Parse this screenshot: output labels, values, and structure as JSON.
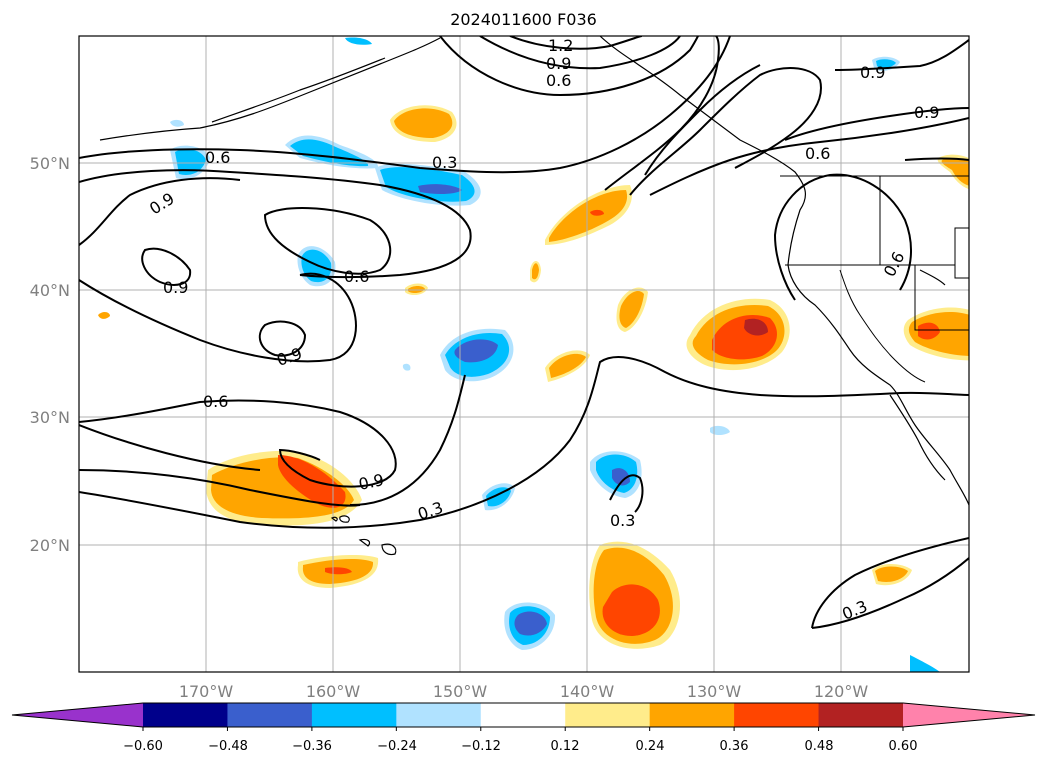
{
  "title": "2024011600 F036",
  "map": {
    "lat_labels": [
      "50°N",
      "40°N",
      "30°N",
      "20°N"
    ],
    "lon_labels": [
      "170°W",
      "160°W",
      "150°W",
      "140°W",
      "130°W",
      "120°W"
    ],
    "lat_range": [
      10,
      60
    ],
    "lon_range": [
      -180,
      -110
    ],
    "contour_labels": [
      "1.2",
      "0.9",
      "0.6",
      "0.6",
      "0.3",
      "0.9",
      "0.6",
      "0.9",
      "0.9",
      "0.6",
      "0.9",
      "0.6",
      "0.6",
      "0.9",
      "0.3",
      "0.3",
      "0.3"
    ],
    "contour_color": "#000000",
    "coastline_color": "#000000",
    "grid_color": "#b0b0b0"
  },
  "colorbar": {
    "tick_labels": [
      "−0.60",
      "−0.48",
      "−0.36",
      "−0.24",
      "−0.12",
      "0.12",
      "0.24",
      "0.36",
      "0.48",
      "0.60"
    ],
    "colors": [
      "#9932cc",
      "#00008b",
      "#3a5fcd",
      "#00bfff",
      "#b0e2ff",
      "#ffffff",
      "#ffec8b",
      "#ffa500",
      "#ff4500",
      "#b22222",
      "#ff82ab"
    ],
    "extend": "both"
  }
}
